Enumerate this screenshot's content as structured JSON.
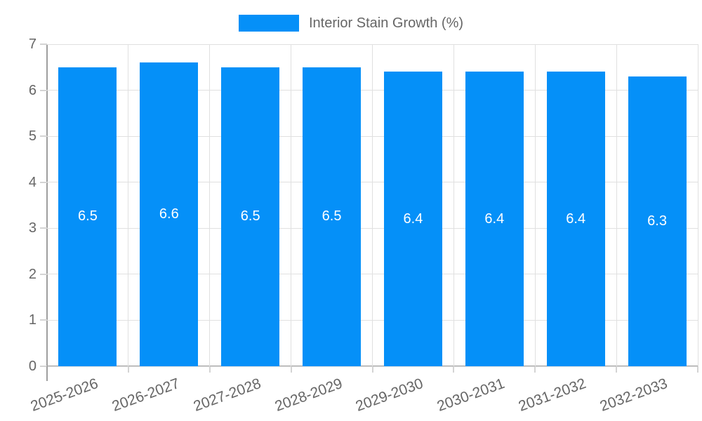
{
  "chart_data": {
    "type": "bar",
    "title": "Interior Stain Growth (%)",
    "categories": [
      "2025-2026",
      "2026-2027",
      "2027-2028",
      "2028-2029",
      "2029-2030",
      "2030-2031",
      "2031-2032",
      "2032-2033"
    ],
    "values": [
      6.5,
      6.6,
      6.5,
      6.5,
      6.4,
      6.4,
      6.4,
      6.3
    ],
    "value_label_decimals": 1,
    "xlabel": "",
    "ylabel": "",
    "ylim": [
      0,
      7
    ],
    "ytick_step": 1,
    "grid": true,
    "legend_position": "top",
    "colors": {
      "bar": "#0590F8",
      "grid": "#e0e0e0",
      "axis": "#9e9e9e",
      "tick": "#d4d4d4",
      "axis_text": "#666666",
      "value_label_text": "#ffffff",
      "background": "#ffffff"
    }
  }
}
